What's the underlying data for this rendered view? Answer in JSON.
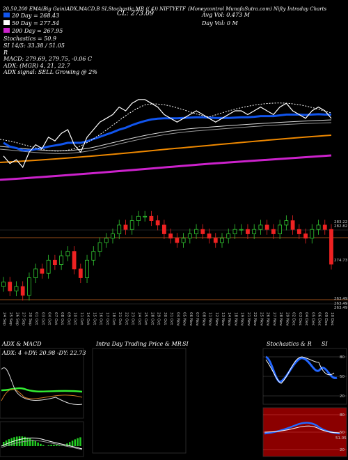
{
  "header": {
    "top_line": "20,50,200 EMA(Big Gain)ADX,MACD,B SI,Stochastic,MR (( 4)) NIFTYETF",
    "top_line_right": "(Moneycontrol MunafaSutra.com) Nifty Intraday Charts",
    "cl_label": "CL: 273.09",
    "legend": [
      {
        "label": "20 Day = 268.43",
        "color": "#1155ee"
      },
      {
        "label": "50 Day = 277.54",
        "color": "#ffffff"
      },
      {
        "label": "200 Day = 267.95",
        "color": "#cc22cc"
      }
    ],
    "stochastics": "Stochastics = 50.9",
    "si_line": "SI 14/5: 33.38 / 51.05",
    "r_line": "R",
    "macd": "MACD: 279.69, 279.75, -0.06 C",
    "adx_line": "ADX: (MGR) 4, 21, 22.7",
    "adx_signal": "ADX signal: SELL Growing @ 2%",
    "avg_vol": "Avg Vol: 0.473 M",
    "day_vol": "Day Vol: 0 M"
  },
  "price_levels": [
    "283.22",
    "282.82",
    "274.73",
    "263.49",
    "263.49",
    "263.49"
  ],
  "date_labels": [
    "24 Sep",
    "25 Sep",
    "26 Sep",
    "27 Sep",
    "30 Sep",
    "01 Oct",
    "03 Oct",
    "04 Oct",
    "07 Oct",
    "08 Oct",
    "09 Oct",
    "10 Oct",
    "11 Oct",
    "14 Oct",
    "15 Oct",
    "16 Oct",
    "17 Oct",
    "18 Oct",
    "21 Oct",
    "22 Oct",
    "23 Oct",
    "24 Oct",
    "25 Oct",
    "28 Oct",
    "29 Oct",
    "30 Oct",
    "31 Oct",
    "04 Nov",
    "05 Nov",
    "06 Nov",
    "07 Nov",
    "08 Nov",
    "11 Nov",
    "12 Nov",
    "13 Nov",
    "14 Nov",
    "18 Nov",
    "19 Nov",
    "21 Nov",
    "22 Nov",
    "25 Nov",
    "26 Nov",
    "27 Nov",
    "28 Nov",
    "29 Nov",
    "02 Dec",
    "03 Dec",
    "04 Dec",
    "05 Dec",
    "06 Dec",
    "09 Dec",
    "10 Dec"
  ],
  "panels": {
    "adx_title": "ADX  & MACD",
    "adx_values": "ADX: 4  +DY: 20.98  -DY: 22.73",
    "intra_title": "Intra Day Trading Price  & MR",
    "intra_si": "SI",
    "stoch_title": "Stochastics & R",
    "stoch_si": "SI",
    "stoch_levels": [
      "80",
      "50",
      "20"
    ],
    "si_levels": [
      "80",
      "50",
      "20"
    ],
    "si_value": "51.05"
  },
  "chart_data": {
    "type": "candlestick",
    "close": [
      269,
      267,
      268,
      266,
      270,
      272,
      271,
      274,
      273,
      275,
      276,
      272,
      270,
      274,
      276,
      278,
      279,
      280,
      282,
      281,
      283,
      284,
      284,
      283,
      282,
      280,
      279,
      278,
      279,
      280,
      281,
      280,
      279,
      278,
      279,
      280,
      281,
      281,
      280,
      281,
      282,
      281,
      280,
      282,
      283,
      281,
      280,
      279,
      281,
      282,
      281,
      273.09
    ],
    "ema20": [
      271,
      270,
      269.6,
      269,
      269,
      269.3,
      269.6,
      270,
      270.3,
      270.6,
      271,
      271,
      271,
      271.4,
      272,
      272.6,
      273.2,
      273.8,
      274.5,
      275,
      275.7,
      276.3,
      276.8,
      277.2,
      277.4,
      277.5,
      277.5,
      277.5,
      277.6,
      277.7,
      277.8,
      277.8,
      277.7,
      277.6,
      277.6,
      277.6,
      277.7,
      277.8,
      277.8,
      277.9,
      278.1,
      278.1,
      278.1,
      278.3,
      278.5,
      278.5,
      278.5,
      278.4,
      278.5,
      278.6,
      278.5,
      268.43
    ],
    "legend": [
      "20 Day = 268.43",
      "50 Day = 277.54",
      "200 Day = 267.95"
    ]
  }
}
